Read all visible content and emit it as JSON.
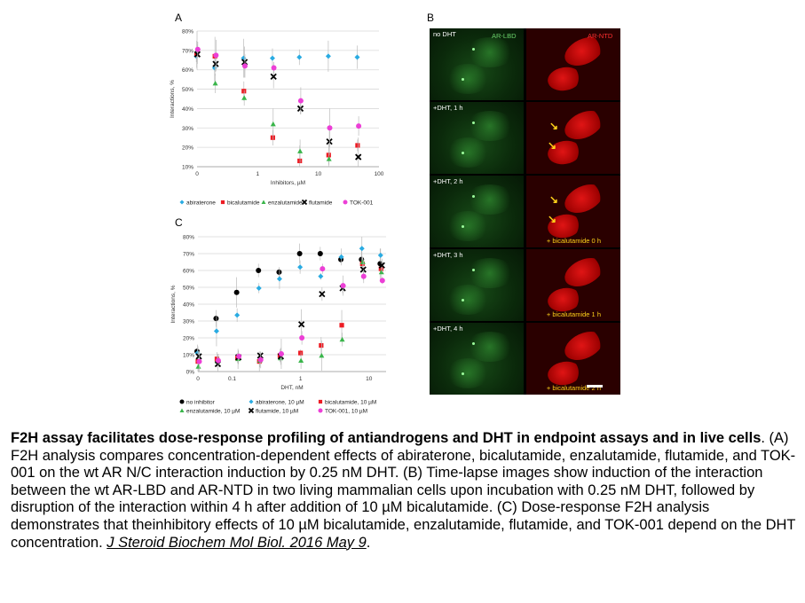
{
  "panel_a": {
    "letter": "A",
    "xlabel": "Inhibitors, µM",
    "ylabel": "Interactions, %",
    "y_ticks": [
      "10%",
      "20%",
      "30%",
      "40%",
      "50%",
      "60%",
      "70%",
      "80%"
    ],
    "x_ticks": [
      "0",
      "1",
      "10",
      "100"
    ],
    "legend": [
      {
        "name": "abiraterone",
        "color": "#29abe2",
        "marker": "diamond"
      },
      {
        "name": "bicalutamide",
        "color": "#ed1c24",
        "marker": "square"
      },
      {
        "name": "enzalutamide",
        "color": "#39b54a",
        "marker": "triangle"
      },
      {
        "name": "flutamide",
        "color": "#000000",
        "marker": "cross"
      },
      {
        "name": "TOK-001",
        "color": "#ec3fd6",
        "marker": "circle"
      }
    ]
  },
  "panel_b": {
    "letter": "B",
    "channel_green": "AR-LBD",
    "channel_red": "AR-NTD",
    "rows": [
      {
        "label": "no DHT",
        "sub": ""
      },
      {
        "label": "+DHT, 1 h",
        "sub": ""
      },
      {
        "label": "+DHT, 2 h",
        "sub": "+ bicalutamide 0 h"
      },
      {
        "label": "+DHT, 3 h",
        "sub": "+ bicalutamide 1 h"
      },
      {
        "label": "+DHT, 4 h",
        "sub": "+ bicalutamide 2 h"
      }
    ]
  },
  "panel_c": {
    "letter": "C",
    "xlabel": "DHT, nM",
    "ylabel": "Interactions, %",
    "y_ticks": [
      "0%",
      "10%",
      "20%",
      "30%",
      "40%",
      "50%",
      "60%",
      "70%",
      "80%"
    ],
    "x_ticks": [
      "0",
      "0.1",
      "1",
      "10"
    ],
    "legend": [
      {
        "name": "no inhibitor",
        "color": "#000000",
        "marker": "circle"
      },
      {
        "name": "abiraterone, 10 µM",
        "color": "#29abe2",
        "marker": "diamond"
      },
      {
        "name": "bicalutamide, 10 µM",
        "color": "#ed1c24",
        "marker": "square"
      },
      {
        "name": "enzalutamide, 10 µM",
        "color": "#39b54a",
        "marker": "triangle"
      },
      {
        "name": "flutamide, 10 µM",
        "color": "#000000",
        "marker": "cross"
      },
      {
        "name": "TOK-001, 10 µM",
        "color": "#ec3fd6",
        "marker": "circle"
      }
    ]
  },
  "chart_data": [
    {
      "type": "scatter",
      "panel": "A",
      "xlabel": "Inhibitors, µM",
      "ylabel": "Interactions, %",
      "x_scale": "log, with 0 at the origin",
      "ylim": [
        10,
        80
      ],
      "x": [
        0,
        0.2,
        0.6,
        1.8,
        5,
        15,
        45
      ],
      "series": [
        {
          "name": "abiraterone",
          "values": [
            67,
            61,
            66,
            66,
            66.5,
            67,
            66.5
          ]
        },
        {
          "name": "bicalutamide",
          "values": [
            68,
            67,
            49,
            25,
            13,
            16,
            21
          ]
        },
        {
          "name": "enzalutamide",
          "values": [
            70,
            53,
            45.5,
            32,
            18,
            14,
            null
          ]
        },
        {
          "name": "flutamide",
          "values": [
            68,
            63,
            64,
            56.5,
            40,
            23,
            15
          ]
        },
        {
          "name": "TOK-001",
          "values": [
            70.5,
            67.5,
            62,
            61,
            44,
            30,
            31
          ]
        }
      ]
    },
    {
      "type": "scatter",
      "panel": "C",
      "xlabel": "DHT, nM",
      "ylabel": "Interactions, %",
      "x_scale": "log, with 0 at the origin",
      "ylim": [
        0,
        80
      ],
      "x": [
        0,
        0.06,
        0.12,
        0.25,
        0.5,
        1,
        2,
        4,
        8,
        15
      ],
      "series": [
        {
          "name": "no inhibitor",
          "values": [
            12,
            31.5,
            47,
            60,
            59,
            70,
            70,
            66.5,
            66.5,
            64
          ]
        },
        {
          "name": "abiraterone, 10 µM",
          "values": [
            11,
            24,
            33.5,
            49.5,
            55,
            62,
            56.5,
            68,
            73,
            69
          ]
        },
        {
          "name": "bicalutamide, 10 µM",
          "values": [
            6,
            7.5,
            8,
            6,
            9.5,
            11,
            15.5,
            27.5,
            64,
            61
          ]
        },
        {
          "name": "enzalutamide, 10 µM",
          "values": [
            3,
            6,
            7.5,
            6.5,
            8,
            6.5,
            9.5,
            19,
            65,
            59
          ]
        },
        {
          "name": "flutamide, 10 µM",
          "values": [
            9,
            4.5,
            8.5,
            9.5,
            9,
            28,
            46,
            49.5,
            60.5,
            63
          ]
        },
        {
          "name": "TOK-001, 10 µM",
          "values": [
            6,
            6.5,
            9,
            7,
            10.5,
            20,
            61,
            51,
            56.5,
            54
          ]
        }
      ]
    }
  ],
  "caption": {
    "title": "F2H assay facilitates dose-response profiling of antiandrogens and DHT in endpoint assays and in live cells",
    "body": ". (A) F2H analysis compares concentration-dependent effects of abiraterone, bicalutamide, enzalutamide, flutamide, and TOK-001 on the wt AR N/C interaction induction by 0.25 nM DHT. (B) Time-lapse images show induction of the interaction between the wt AR-LBD and AR-NTD in two living mammalian cells upon incubation with 0.25 nM DHT, followed by disruption of the interaction within 4 h after addition of 10 µM bicalutamide. (C) Dose-response F2H analysis demonstrates that theinhibitory effects of 10 µM bicalutamide, enzalutamide, flutamide, and TOK-001 depend on the DHT concentration. ",
    "citation": "J Steroid Biochem Mol Biol. 2016 May 9",
    "end": "."
  }
}
